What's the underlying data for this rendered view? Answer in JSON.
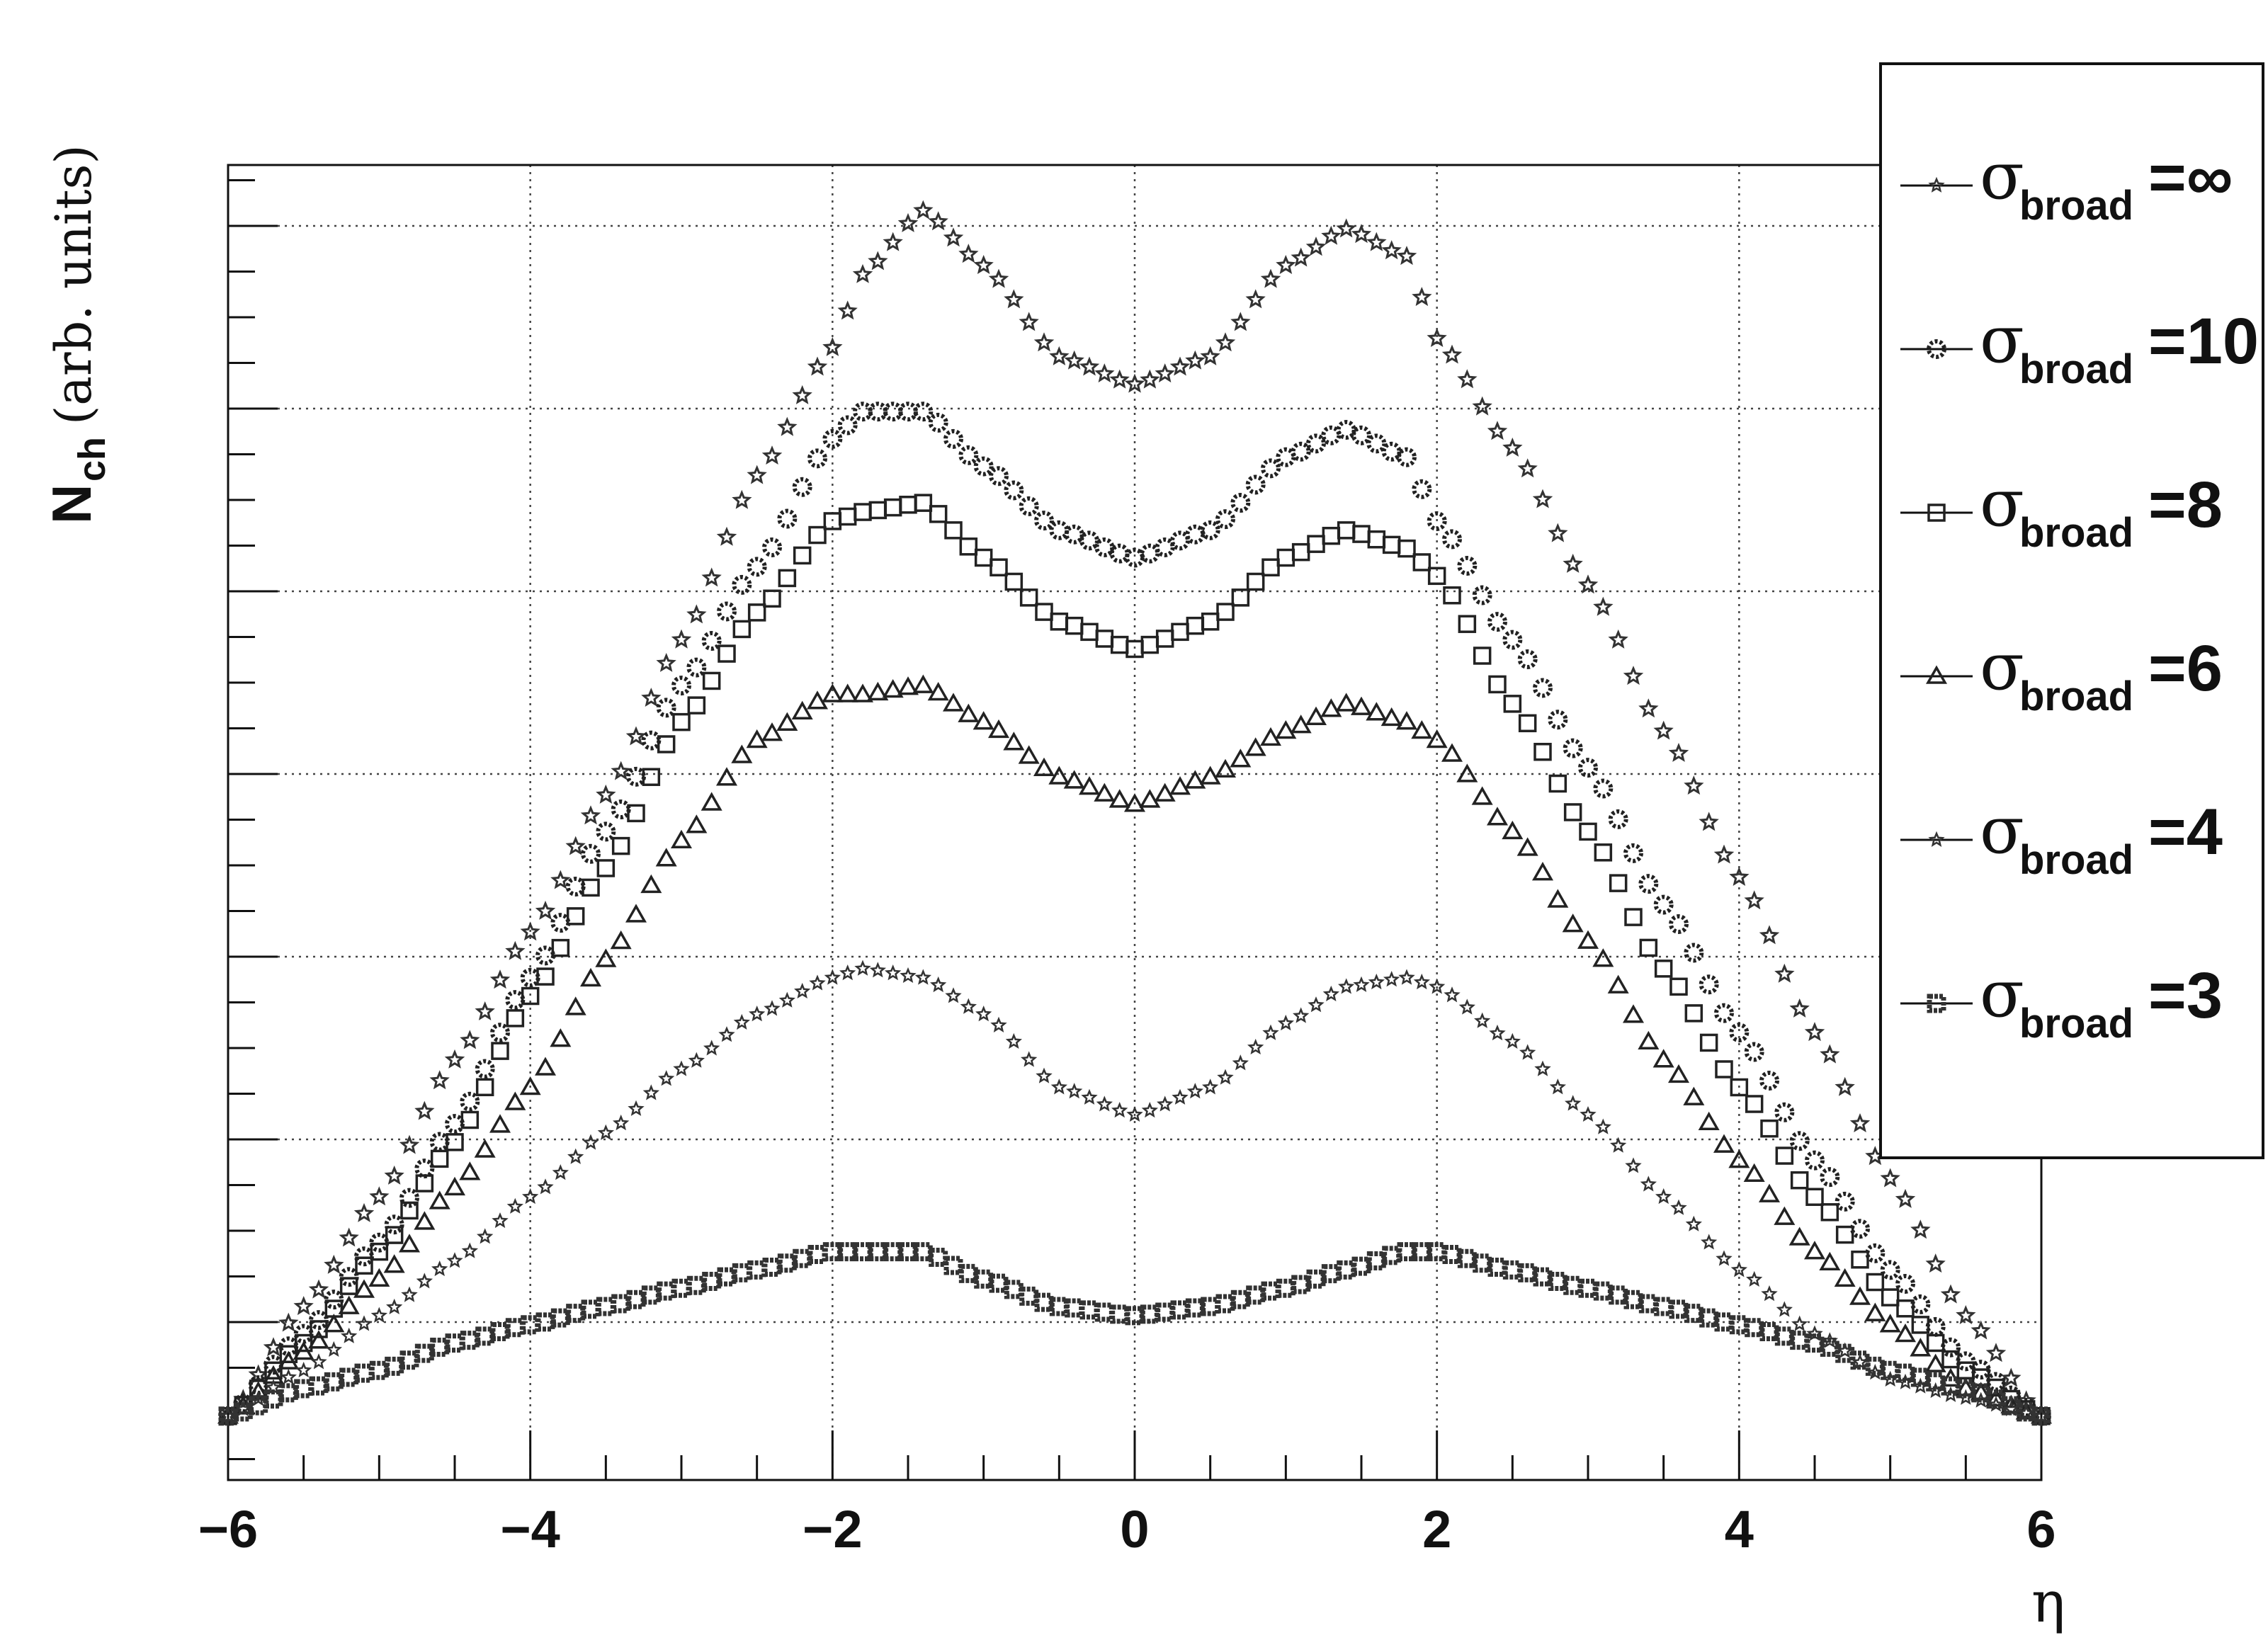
{
  "chart_data": {
    "type": "scatter",
    "xlabel": "η",
    "ylabel": {
      "main": "N",
      "sub": "ch",
      "units": "(arb. units)"
    },
    "xlim": [
      -6,
      6
    ],
    "ylim": [
      0,
      7.2
    ],
    "grid": true,
    "legend_placement": "top-right",
    "x_ticks": [
      "−6",
      "−4",
      "−2",
      "0",
      "2",
      "4",
      "6"
    ],
    "x": [
      -6.0,
      -5.5,
      -5.0,
      -4.5,
      -4.0,
      -3.5,
      -3.0,
      -2.5,
      -2.0,
      -1.8,
      -1.4,
      -1.0,
      -0.5,
      0.0,
      0.5,
      1.0,
      1.4,
      1.8,
      2.0,
      2.5,
      3.0,
      3.5,
      4.0,
      4.5,
      5.0,
      5.5,
      6.0
    ],
    "series": [
      {
        "name": "∞",
        "marker": "star",
        "values": [
          0.35,
          0.95,
          1.55,
          2.3,
          3.0,
          3.75,
          4.6,
          5.5,
          6.2,
          6.6,
          6.95,
          6.65,
          6.15,
          6.0,
          6.15,
          6.65,
          6.85,
          6.7,
          6.25,
          5.65,
          4.9,
          4.1,
          3.3,
          2.45,
          1.65,
          0.9,
          0.35
        ]
      },
      {
        "name": "10",
        "marker": "open-circle",
        "values": [
          0.35,
          0.8,
          1.3,
          1.95,
          2.75,
          3.55,
          4.35,
          5.0,
          5.7,
          5.85,
          5.85,
          5.55,
          5.2,
          5.05,
          5.2,
          5.6,
          5.75,
          5.6,
          5.25,
          4.6,
          3.9,
          3.15,
          2.45,
          1.75,
          1.15,
          0.65,
          0.35
        ]
      },
      {
        "name": "8",
        "marker": "open-square",
        "values": [
          0.35,
          0.75,
          1.25,
          1.85,
          2.65,
          3.35,
          4.15,
          4.75,
          5.25,
          5.3,
          5.35,
          5.05,
          4.7,
          4.55,
          4.7,
          5.05,
          5.2,
          5.1,
          4.95,
          4.25,
          3.55,
          2.8,
          2.15,
          1.55,
          1.0,
          0.6,
          0.35
        ]
      },
      {
        "name": "6",
        "marker": "open-triangle",
        "values": [
          0.35,
          0.7,
          1.1,
          1.6,
          2.15,
          2.85,
          3.5,
          4.05,
          4.3,
          4.3,
          4.35,
          4.15,
          3.85,
          3.7,
          3.85,
          4.1,
          4.25,
          4.15,
          4.05,
          3.55,
          2.95,
          2.3,
          1.75,
          1.25,
          0.85,
          0.5,
          0.35
        ]
      },
      {
        "name": "4",
        "marker": "small-star",
        "values": [
          0.35,
          0.6,
          0.9,
          1.2,
          1.55,
          1.9,
          2.25,
          2.55,
          2.75,
          2.8,
          2.75,
          2.55,
          2.15,
          2.0,
          2.15,
          2.5,
          2.7,
          2.75,
          2.7,
          2.4,
          2.0,
          1.55,
          1.15,
          0.8,
          0.55,
          0.45,
          0.35
        ]
      },
      {
        "name": "3",
        "marker": "filled-square-ring",
        "values": [
          0.35,
          0.5,
          0.6,
          0.75,
          0.85,
          0.95,
          1.05,
          1.15,
          1.25,
          1.25,
          1.25,
          1.1,
          0.95,
          0.9,
          0.95,
          1.05,
          1.15,
          1.25,
          1.25,
          1.15,
          1.05,
          0.95,
          0.85,
          0.75,
          0.6,
          0.5,
          0.35
        ]
      }
    ]
  },
  "legend": {
    "title_symbol": "σ",
    "title_sub": "broad",
    "entries": [
      "=∞",
      "=10",
      "=8",
      "=6",
      "=4",
      "=3"
    ]
  }
}
